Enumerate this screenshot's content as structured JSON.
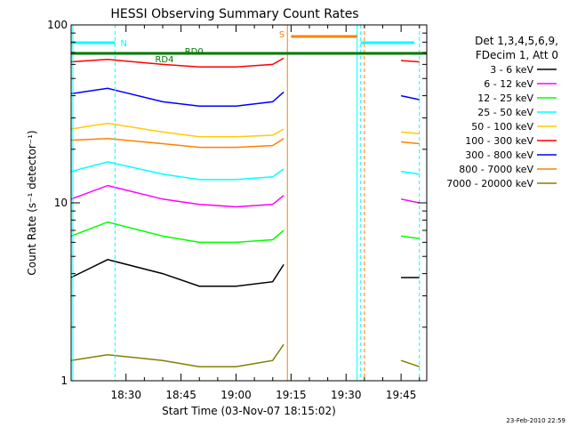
{
  "chart_data": {
    "type": "line",
    "title": "HESSI Observing Summary Count Rates",
    "xlabel": "Start Time (03-Nov-07 18:15:02)",
    "ylabel": "Count Rate (s⁻¹ detector⁻¹)",
    "footer": "23-Feb-2010 22:59",
    "y_scale": "log",
    "ylim": [
      1,
      100
    ],
    "xlim": [
      "18:15:02",
      "19:52:00"
    ],
    "x_ticks": [
      "18:30",
      "18:45",
      "19:00",
      "19:15",
      "19:30",
      "19:45"
    ],
    "y_ticks": [
      "1",
      "10",
      "100"
    ],
    "grid": false,
    "legend_position": "right",
    "legend_header": [
      "Det 1,3,4,5,6,9,",
      "FDecim 1, Att 0"
    ],
    "series": [
      {
        "name": "3 - 6 keV",
        "color": "#000000",
        "x": [
          "18:15",
          "18:25",
          "18:40",
          "18:50",
          "19:00",
          "19:10",
          "19:13",
          "19:35",
          "19:45",
          "19:50"
        ],
        "y": [
          3.8,
          4.8,
          4.0,
          3.4,
          3.4,
          3.6,
          4.5,
          null,
          3.8,
          3.8
        ]
      },
      {
        "name": "6 - 12 keV",
        "color": "#ff00ff",
        "x": [
          "18:15",
          "18:25",
          "18:40",
          "18:50",
          "19:00",
          "19:10",
          "19:13",
          "19:35",
          "19:45",
          "19:50"
        ],
        "y": [
          10.5,
          12.5,
          10.5,
          9.8,
          9.5,
          9.8,
          11,
          null,
          10.5,
          10
        ]
      },
      {
        "name": "12 - 25 keV",
        "color": "#00ff00",
        "x": [
          "18:15",
          "18:25",
          "18:40",
          "18:50",
          "19:00",
          "19:10",
          "19:13",
          "19:35",
          "19:45",
          "19:50"
        ],
        "y": [
          6.5,
          7.8,
          6.5,
          6.0,
          6.0,
          6.2,
          7,
          null,
          6.5,
          6.3
        ]
      },
      {
        "name": "25 - 50 keV",
        "color": "#00ffff",
        "x": [
          "18:15",
          "18:25",
          "18:40",
          "18:50",
          "19:00",
          "19:10",
          "19:13",
          "19:35",
          "19:45",
          "19:50"
        ],
        "y": [
          15,
          17,
          14.5,
          13.5,
          13.5,
          14,
          15.5,
          null,
          15,
          14.5
        ]
      },
      {
        "name": "50 - 100 keV",
        "color": "#ffcc00",
        "x": [
          "18:15",
          "18:25",
          "18:40",
          "18:50",
          "19:00",
          "19:10",
          "19:13",
          "19:35",
          "19:45",
          "19:50"
        ],
        "y": [
          26,
          28,
          25,
          23.5,
          23.5,
          24,
          26,
          null,
          25,
          24.5
        ]
      },
      {
        "name": "100 - 300 keV",
        "color": "#ff0000",
        "x": [
          "18:15",
          "18:25",
          "18:40",
          "18:50",
          "19:00",
          "19:10",
          "19:13",
          "19:35",
          "19:45",
          "19:50"
        ],
        "y": [
          62,
          64,
          60,
          58,
          58,
          60,
          65,
          null,
          63,
          62
        ]
      },
      {
        "name": "300 - 800 keV",
        "color": "#0000ff",
        "x": [
          "18:15",
          "18:25",
          "18:40",
          "18:50",
          "19:00",
          "19:10",
          "19:13",
          "19:35",
          "19:45",
          "19:50"
        ],
        "y": [
          41,
          44,
          37,
          35,
          35,
          37,
          42,
          null,
          40,
          38
        ]
      },
      {
        "name": "800 - 7000 keV",
        "color": "#ff8000",
        "x": [
          "18:15",
          "18:25",
          "18:40",
          "18:50",
          "19:00",
          "19:10",
          "19:13",
          "19:35",
          "19:45",
          "19:50"
        ],
        "y": [
          22.5,
          23,
          21.5,
          20.5,
          20.5,
          21,
          23,
          null,
          22,
          21.5
        ]
      },
      {
        "name": "7000 - 20000 keV",
        "color": "#808000",
        "x": [
          "18:15",
          "18:25",
          "18:40",
          "18:50",
          "19:00",
          "19:10",
          "19:13",
          "19:35",
          "19:45",
          "19:50"
        ],
        "y": [
          1.3,
          1.4,
          1.3,
          1.2,
          1.2,
          1.3,
          1.6,
          null,
          1.3,
          1.2
        ]
      }
    ],
    "annotations": [
      {
        "text": "N",
        "color": "#00ffff"
      },
      {
        "text": "RD0",
        "color": "#007700"
      },
      {
        "text": "RD4",
        "color": "#007700"
      },
      {
        "text": "S",
        "color": "#ff8000"
      }
    ],
    "colors": {
      "axis": "#000000",
      "night": "#00ffff",
      "saa": "#ff8000",
      "decimation": "#007700"
    }
  }
}
